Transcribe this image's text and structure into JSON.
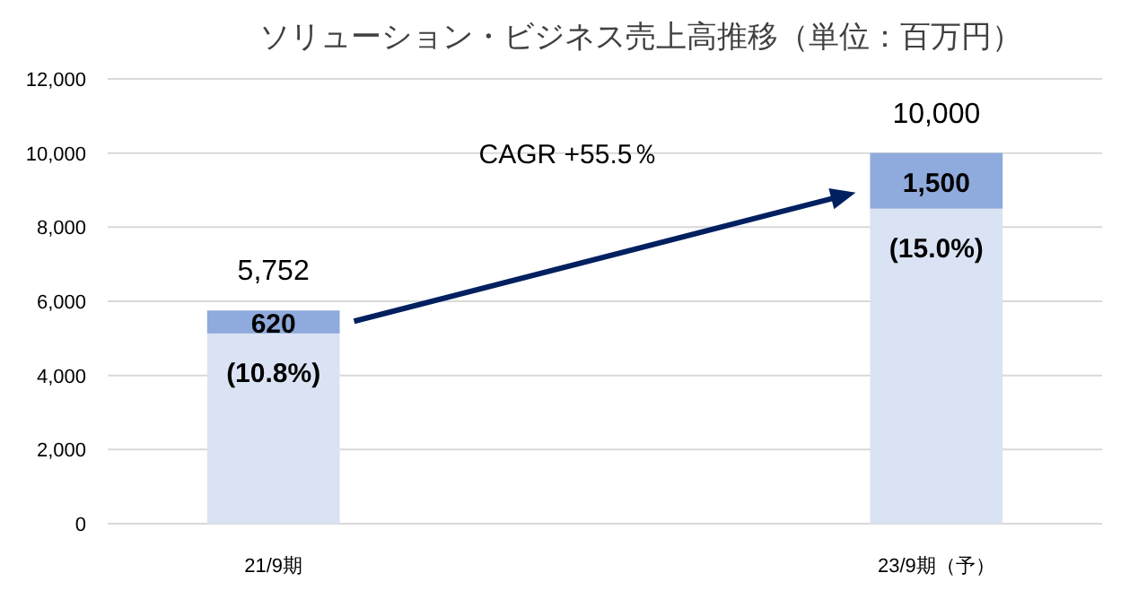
{
  "chart_data": {
    "type": "bar",
    "title": "ソリューション・ビジネス売上高推移（単位：百万円）",
    "stacked": true,
    "categories": [
      "21/9期",
      null,
      "23/9期（予）"
    ],
    "series": [
      {
        "color": "#dae3f3",
        "values": [
          5132,
          null,
          8500
        ]
      },
      {
        "color": "#8faadc",
        "values": [
          620,
          null,
          1500
        ],
        "value_labels": [
          "620",
          null,
          "1,500"
        ]
      }
    ],
    "totals": [
      "5,752",
      null,
      "10,000"
    ],
    "ylim": [
      0,
      12000
    ],
    "yticks": [
      {
        "value": 0,
        "label": "0"
      },
      {
        "value": 2000,
        "label": "2,000"
      },
      {
        "value": 4000,
        "label": "4,000"
      },
      {
        "value": 6000,
        "label": "6,000"
      },
      {
        "value": 8000,
        "label": "8,000"
      },
      {
        "value": 10000,
        "label": "10,000"
      },
      {
        "value": 12000,
        "label": "12,000"
      }
    ],
    "grid": "y",
    "annotations": [
      "(10.8%)",
      "(15.0%)",
      "CAGR +55.5％"
    ]
  }
}
